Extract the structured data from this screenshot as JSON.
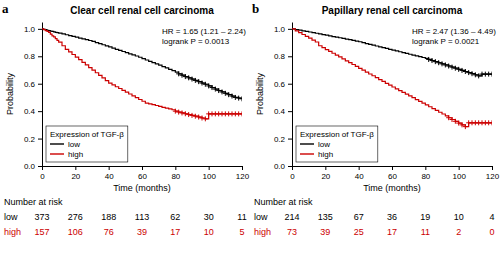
{
  "chart_data": [
    {
      "type": "step",
      "panel_label": "a",
      "title": "Clear cell renal cell carcinoma",
      "x_label": "Time (months)",
      "y_label": "Probability",
      "annotation": "HR = 1.65 (1.21 – 2.24)\nlogrank P = 0.0013",
      "xlim": [
        0,
        120
      ],
      "ylim": [
        0.0,
        1.05
      ],
      "xticks": [
        0,
        20,
        40,
        60,
        80,
        100,
        120
      ],
      "yticks": [
        {
          "value": 0.0,
          "label": "0.0"
        },
        0.2,
        0.4,
        0.6,
        0.8,
        {
          "value": 1.0,
          "label": "1.0"
        }
      ],
      "grid": false,
      "legend": "lower left",
      "legend_title": "Expression of TGF-β",
      "series": [
        {
          "name": "low",
          "color": "#000000",
          "line_style": "step",
          "x": [
            0,
            1,
            2,
            3,
            4,
            5,
            6,
            7,
            8,
            9,
            10,
            12,
            14,
            16,
            18,
            20,
            22,
            24,
            26,
            28,
            30,
            32,
            34,
            36,
            38,
            40,
            42,
            44,
            46,
            48,
            50,
            52,
            54,
            56,
            58,
            60,
            62,
            64,
            66,
            68,
            70,
            72,
            74,
            76,
            78,
            80,
            82,
            84,
            86,
            88,
            90,
            92,
            94,
            96,
            98,
            100,
            102,
            104,
            106,
            108,
            110,
            112,
            114,
            116,
            118,
            120
          ],
          "values": [
            1.0,
            0.997,
            0.994,
            0.99,
            0.987,
            0.984,
            0.981,
            0.978,
            0.975,
            0.972,
            0.969,
            0.963,
            0.957,
            0.951,
            0.945,
            0.939,
            0.933,
            0.927,
            0.921,
            0.915,
            0.909,
            0.9,
            0.892,
            0.884,
            0.876,
            0.868,
            0.86,
            0.851,
            0.843,
            0.835,
            0.826,
            0.818,
            0.81,
            0.802,
            0.793,
            0.783,
            0.773,
            0.763,
            0.754,
            0.744,
            0.735,
            0.725,
            0.715,
            0.705,
            0.696,
            0.684,
            0.672,
            0.662,
            0.652,
            0.643,
            0.634,
            0.624,
            0.615,
            0.605,
            0.596,
            0.584,
            0.572,
            0.561,
            0.55,
            0.54,
            0.53,
            0.52,
            0.51,
            0.5,
            0.495,
            0.49
          ],
          "censors": {
            "marker": "plus",
            "x": [
              82,
              84,
              86,
              88,
              90,
              92,
              94,
              96,
              98,
              100,
              102,
              104,
              106,
              108,
              110,
              112,
              114,
              116,
              118,
              120
            ],
            "values": [
              0.672,
              0.662,
              0.652,
              0.643,
              0.634,
              0.624,
              0.615,
              0.605,
              0.596,
              0.584,
              0.572,
              0.561,
              0.55,
              0.54,
              0.53,
              0.52,
              0.51,
              0.5,
              0.495,
              0.49
            ]
          }
        },
        {
          "name": "high",
          "color": "#cc0000",
          "line_style": "step",
          "x": [
            0,
            1,
            2,
            3,
            4,
            5,
            6,
            7,
            8,
            9,
            10,
            12,
            14,
            16,
            18,
            20,
            22,
            24,
            26,
            28,
            30,
            32,
            34,
            36,
            38,
            40,
            42,
            44,
            46,
            48,
            50,
            52,
            54,
            56,
            58,
            60,
            62,
            64,
            66,
            68,
            70,
            72,
            74,
            76,
            78,
            80,
            82,
            84,
            86,
            88,
            90,
            92,
            94,
            96,
            98,
            100,
            102,
            104,
            106,
            108,
            110,
            112,
            114,
            116,
            118,
            120
          ],
          "values": [
            1.0,
            0.994,
            0.987,
            0.981,
            0.974,
            0.961,
            0.949,
            0.942,
            0.929,
            0.916,
            0.903,
            0.877,
            0.851,
            0.832,
            0.813,
            0.794,
            0.775,
            0.756,
            0.737,
            0.718,
            0.699,
            0.68,
            0.661,
            0.642,
            0.623,
            0.604,
            0.591,
            0.578,
            0.565,
            0.551,
            0.538,
            0.525,
            0.512,
            0.499,
            0.485,
            0.472,
            0.459,
            0.453,
            0.447,
            0.441,
            0.435,
            0.428,
            0.422,
            0.416,
            0.41,
            0.4,
            0.393,
            0.387,
            0.381,
            0.375,
            0.369,
            0.363,
            0.357,
            0.35,
            0.344,
            0.38,
            0.38,
            0.38,
            0.38,
            0.38,
            0.38,
            0.38,
            0.38,
            0.38,
            0.38,
            0.38
          ],
          "censors": {
            "marker": "plus",
            "x": [
              80,
              82,
              84,
              86,
              88,
              90,
              92,
              94,
              96,
              98,
              100,
              102,
              104,
              106,
              108,
              110,
              112,
              114,
              116,
              118,
              120
            ],
            "values": [
              0.4,
              0.393,
              0.387,
              0.381,
              0.375,
              0.369,
              0.363,
              0.357,
              0.35,
              0.344,
              0.38,
              0.38,
              0.38,
              0.38,
              0.38,
              0.38,
              0.38,
              0.38,
              0.38,
              0.38,
              0.38
            ]
          }
        }
      ],
      "risk_table": {
        "title": "Number at risk",
        "x": [
          0,
          20,
          40,
          60,
          80,
          100,
          120
        ],
        "rows": [
          {
            "name": "low",
            "color": "#000000",
            "values": [
              373,
              276,
              188,
              113,
              62,
              30,
              11
            ]
          },
          {
            "name": "high",
            "color": "#cc0000",
            "values": [
              157,
              106,
              76,
              39,
              17,
              10,
              5
            ]
          }
        ]
      }
    },
    {
      "type": "step",
      "panel_label": "b",
      "title": "Papillary renal cell carcinoma",
      "x_label": "Time (months)",
      "y_label": "Probability",
      "annotation": "HR = 2.47 (1.36 – 4.49)\nlogrank P = 0.0021",
      "xlim": [
        0,
        120
      ],
      "ylim": [
        0.0,
        1.05
      ],
      "xticks": [
        0,
        20,
        40,
        60,
        80,
        100,
        120
      ],
      "yticks": [
        {
          "value": 0.0,
          "label": "0.0"
        },
        0.2,
        0.4,
        0.6,
        0.8,
        {
          "value": 1.0,
          "label": "1.0"
        }
      ],
      "grid": false,
      "legend": "lower left",
      "legend_title": "Expression of TGF-β",
      "series": [
        {
          "name": "low",
          "color": "#000000",
          "line_style": "step",
          "x": [
            0,
            2,
            4,
            6,
            8,
            10,
            12,
            14,
            16,
            18,
            20,
            22,
            24,
            26,
            28,
            30,
            32,
            34,
            36,
            38,
            40,
            42,
            44,
            46,
            48,
            50,
            52,
            54,
            56,
            58,
            60,
            62,
            64,
            66,
            68,
            70,
            72,
            74,
            76,
            78,
            80,
            82,
            84,
            86,
            88,
            90,
            92,
            94,
            96,
            98,
            100,
            102,
            104,
            106,
            108,
            110,
            112,
            114,
            116,
            118,
            120
          ],
          "values": [
            1.0,
            0.995,
            0.991,
            0.986,
            0.981,
            0.977,
            0.972,
            0.968,
            0.963,
            0.958,
            0.954,
            0.949,
            0.944,
            0.94,
            0.935,
            0.93,
            0.925,
            0.921,
            0.916,
            0.911,
            0.906,
            0.9,
            0.893,
            0.887,
            0.881,
            0.875,
            0.869,
            0.863,
            0.857,
            0.851,
            0.845,
            0.839,
            0.833,
            0.827,
            0.821,
            0.815,
            0.809,
            0.803,
            0.797,
            0.791,
            0.785,
            0.777,
            0.769,
            0.761,
            0.753,
            0.745,
            0.737,
            0.729,
            0.721,
            0.713,
            0.705,
            0.697,
            0.689,
            0.681,
            0.673,
            0.665,
            0.657,
            0.67,
            0.67,
            0.67,
            0.67
          ],
          "censors": {
            "marker": "plus",
            "x": [
              82,
              84,
              86,
              88,
              90,
              92,
              94,
              96,
              98,
              100,
              102,
              104,
              106,
              108,
              110,
              112,
              114,
              116,
              118,
              120
            ],
            "values": [
              0.777,
              0.769,
              0.761,
              0.753,
              0.745,
              0.737,
              0.729,
              0.721,
              0.713,
              0.705,
              0.697,
              0.689,
              0.681,
              0.673,
              0.665,
              0.657,
              0.67,
              0.67,
              0.67,
              0.67
            ]
          }
        },
        {
          "name": "high",
          "color": "#cc0000",
          "line_style": "step",
          "x": [
            0,
            2,
            4,
            6,
            8,
            10,
            12,
            14,
            16,
            18,
            20,
            22,
            24,
            26,
            28,
            30,
            32,
            34,
            36,
            38,
            40,
            42,
            44,
            46,
            48,
            50,
            52,
            54,
            56,
            58,
            60,
            62,
            64,
            66,
            68,
            70,
            72,
            74,
            76,
            78,
            80,
            82,
            84,
            86,
            88,
            90,
            92,
            94,
            96,
            98,
            100,
            102,
            104,
            106,
            108,
            110,
            112,
            114,
            116,
            118,
            120
          ],
          "values": [
            1.0,
            0.986,
            0.973,
            0.959,
            0.945,
            0.932,
            0.918,
            0.904,
            0.877,
            0.863,
            0.849,
            0.836,
            0.822,
            0.808,
            0.795,
            0.781,
            0.767,
            0.754,
            0.74,
            0.726,
            0.712,
            0.699,
            0.685,
            0.671,
            0.658,
            0.644,
            0.63,
            0.617,
            0.603,
            0.59,
            0.576,
            0.563,
            0.55,
            0.537,
            0.524,
            0.511,
            0.498,
            0.484,
            0.471,
            0.458,
            0.445,
            0.432,
            0.418,
            0.405,
            0.392,
            0.379,
            0.365,
            0.352,
            0.339,
            0.326,
            0.313,
            0.3,
            0.287,
            0.315,
            0.315,
            0.315,
            0.315,
            0.315,
            0.315,
            0.315,
            0.315
          ],
          "censors": {
            "marker": "plus",
            "x": [
              94,
              96,
              98,
              100,
              102,
              104,
              106,
              108,
              110,
              112,
              114,
              116,
              118,
              120
            ],
            "values": [
              0.352,
              0.339,
              0.326,
              0.313,
              0.3,
              0.287,
              0.315,
              0.315,
              0.315,
              0.315,
              0.315,
              0.315,
              0.315,
              0.315
            ]
          }
        }
      ],
      "risk_table": {
        "title": "Number at risk",
        "x": [
          0,
          20,
          40,
          60,
          80,
          100,
          120
        ],
        "rows": [
          {
            "name": "low",
            "color": "#000000",
            "values": [
              214,
              135,
              67,
              36,
              19,
              10,
              4
            ]
          },
          {
            "name": "high",
            "color": "#cc0000",
            "values": [
              73,
              39,
              25,
              17,
              11,
              2,
              0
            ]
          }
        ]
      }
    }
  ]
}
